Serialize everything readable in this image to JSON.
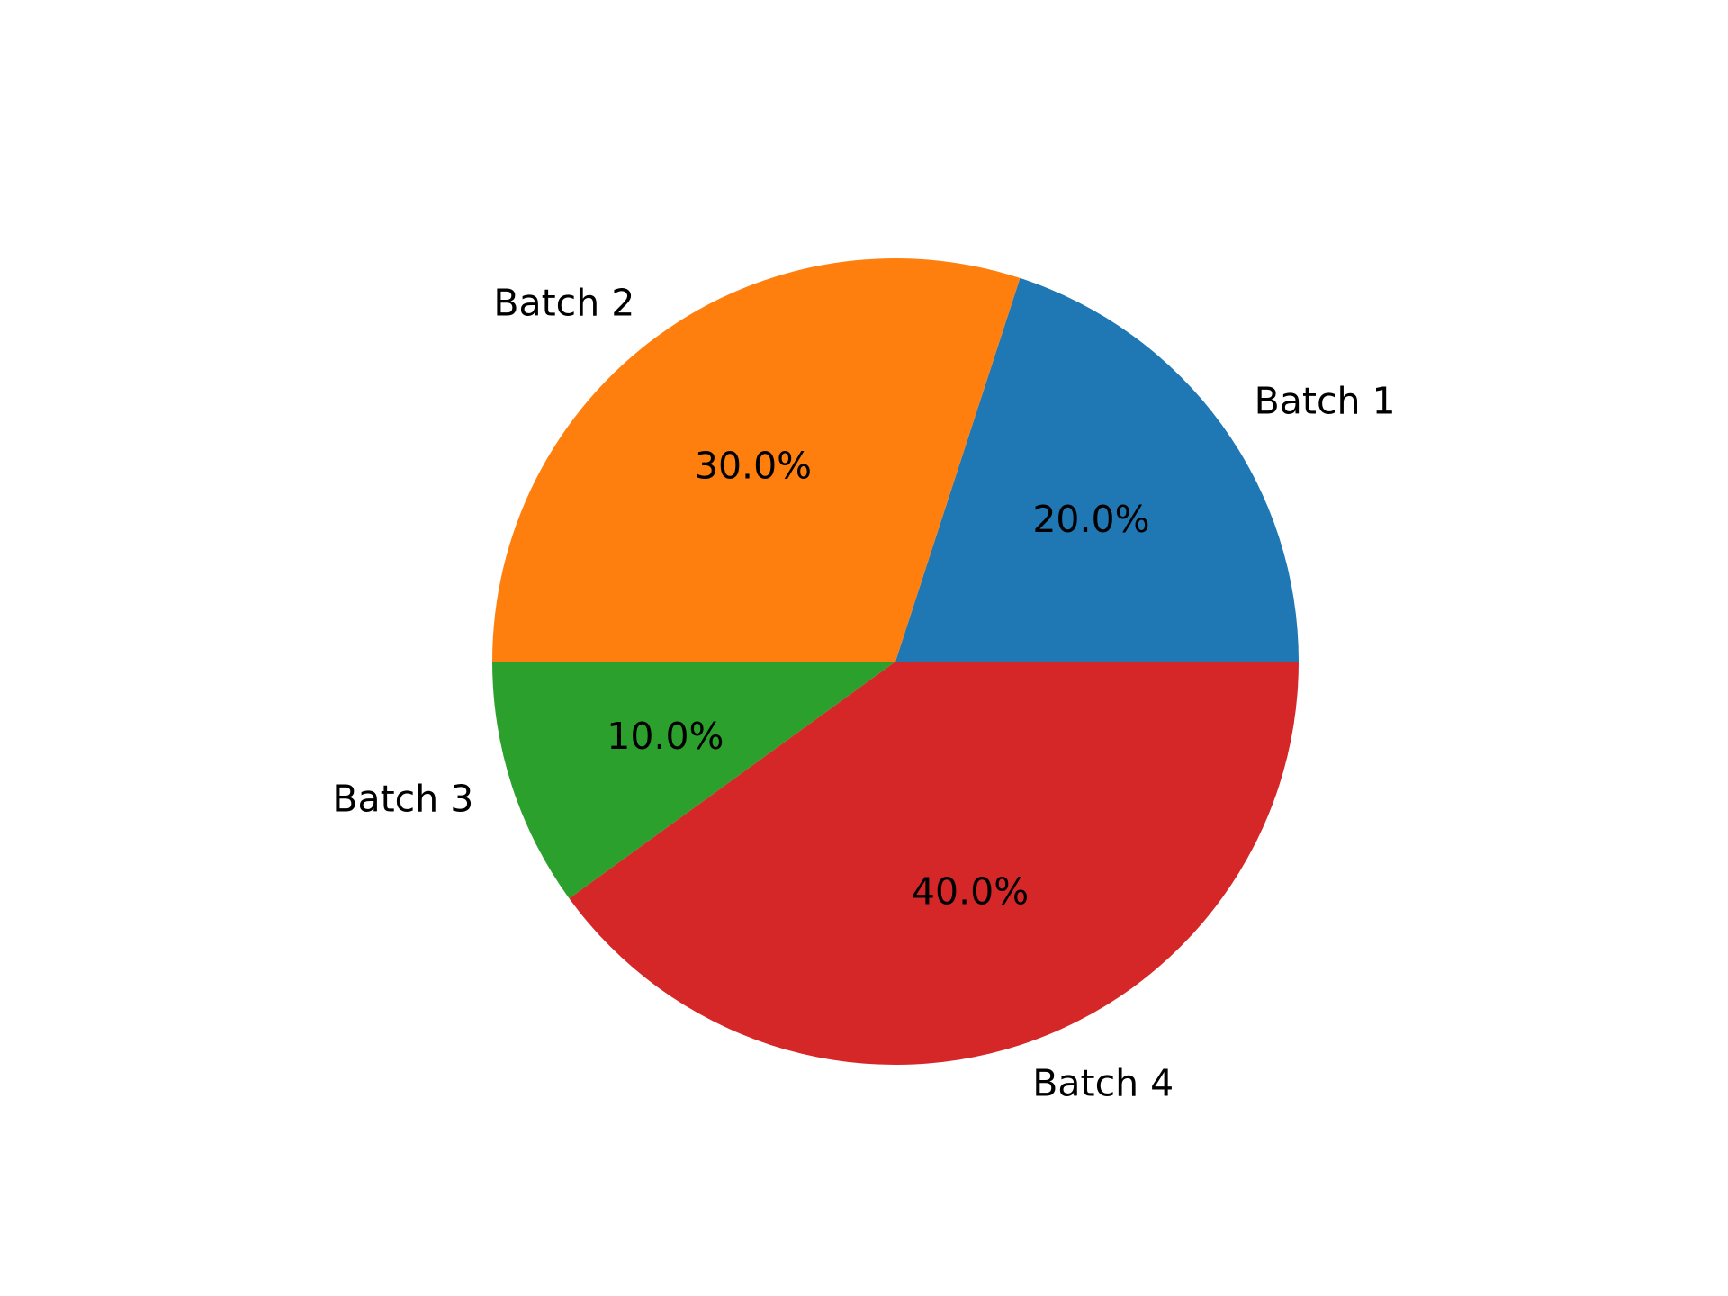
{
  "chart_data": {
    "type": "pie",
    "title": "",
    "start_angle_deg": 0,
    "direction": "counterclockwise",
    "slices": [
      {
        "label": "Batch 1",
        "value": 20,
        "pct_label": "20.0%",
        "color": "#1f77b4"
      },
      {
        "label": "Batch 2",
        "value": 30,
        "pct_label": "30.0%",
        "color": "#ff7f0e"
      },
      {
        "label": "Batch 3",
        "value": 10,
        "pct_label": "10.0%",
        "color": "#2ca02c"
      },
      {
        "label": "Batch 4",
        "value": 40,
        "pct_label": "40.0%",
        "color": "#d62728"
      }
    ]
  }
}
